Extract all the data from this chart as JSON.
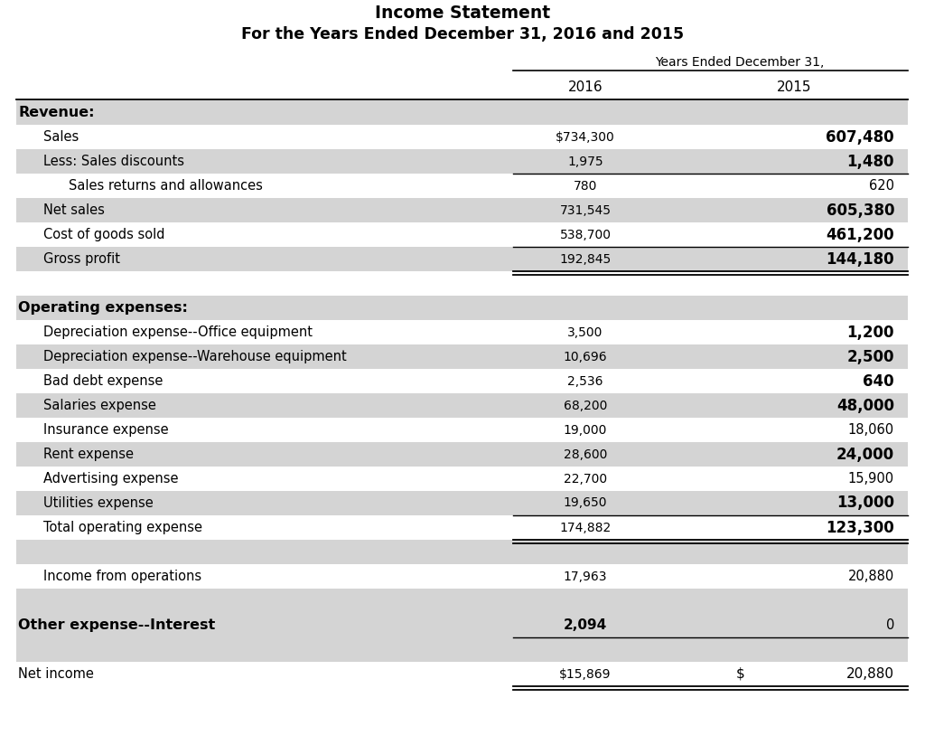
{
  "title1": "Income Statement",
  "title2": "For the Years Ended December 31, 2016 and 2015",
  "col_header": "Years Ended December 31,",
  "col1": "2016",
  "col2": "2015",
  "bg_color": "#ffffff",
  "shaded_color": "#d4d4d4",
  "rows": [
    {
      "label": "Revenue:",
      "val1": "",
      "val2": "",
      "style": "header_bold",
      "shade": true,
      "indent": 0
    },
    {
      "label": "Sales",
      "val1": "$734,300",
      "val2": "607,480",
      "style": "normal",
      "shade": false,
      "indent": 1,
      "val2_bold": true
    },
    {
      "label": "Less: Sales discounts",
      "val1": "1,975",
      "val2": "1,480",
      "style": "normal",
      "shade": true,
      "indent": 1,
      "val2_bold": true
    },
    {
      "label": "Sales returns and allowances",
      "val1": "780",
      "val2": "620",
      "style": "normal",
      "shade": false,
      "indent": 2,
      "line_above": true,
      "val2_bold": false
    },
    {
      "label": "Net sales",
      "val1": "731,545",
      "val2": "605,380",
      "style": "normal",
      "shade": true,
      "indent": 1,
      "val2_bold": true
    },
    {
      "label": "Cost of goods sold",
      "val1": "538,700",
      "val2": "461,200",
      "style": "normal",
      "shade": false,
      "indent": 1,
      "val2_bold": true
    },
    {
      "label": "Gross profit",
      "val1": "192,845",
      "val2": "144,180",
      "style": "normal",
      "shade": true,
      "indent": 1,
      "line_above": true,
      "double_line_below": true,
      "val2_bold": true
    },
    {
      "label": "",
      "val1": "",
      "val2": "",
      "style": "spacer",
      "shade": false,
      "indent": 0
    },
    {
      "label": "Operating expenses:",
      "val1": "",
      "val2": "",
      "style": "header_bold",
      "shade": true,
      "indent": 0
    },
    {
      "label": "Depreciation expense--Office equipment",
      "val1": "3,500",
      "val2": "1,200",
      "style": "normal",
      "shade": false,
      "indent": 1,
      "val2_bold": true
    },
    {
      "label": "Depreciation expense--Warehouse equipment",
      "val1": "10,696",
      "val2": "2,500",
      "style": "normal",
      "shade": true,
      "indent": 1,
      "val2_bold": true
    },
    {
      "label": "Bad debt expense",
      "val1": "2,536",
      "val2": "640",
      "style": "normal",
      "shade": false,
      "indent": 1,
      "val2_bold": true
    },
    {
      "label": "Salaries expense",
      "val1": "68,200",
      "val2": "48,000",
      "style": "normal",
      "shade": true,
      "indent": 1,
      "val2_bold": true
    },
    {
      "label": "Insurance expense",
      "val1": "19,000",
      "val2": "18,060",
      "style": "normal",
      "shade": false,
      "indent": 1,
      "val2_bold": false
    },
    {
      "label": "Rent expense",
      "val1": "28,600",
      "val2": "24,000",
      "style": "normal",
      "shade": true,
      "indent": 1,
      "val2_bold": true
    },
    {
      "label": "Advertising expense",
      "val1": "22,700",
      "val2": "15,900",
      "style": "normal",
      "shade": false,
      "indent": 1,
      "val2_bold": false
    },
    {
      "label": "Utilities expense",
      "val1": "19,650",
      "val2": "13,000",
      "style": "normal",
      "shade": true,
      "indent": 1,
      "val2_bold": true
    },
    {
      "label": "Total operating expense",
      "val1": "174,882",
      "val2": "123,300",
      "style": "normal",
      "shade": false,
      "indent": 1,
      "line_above": true,
      "double_line_below": true,
      "val2_bold": true
    },
    {
      "label": "",
      "val1": "",
      "val2": "",
      "style": "spacer",
      "shade": true,
      "indent": 0
    },
    {
      "label": "Income from operations",
      "val1": "17,963",
      "val2": "20,880",
      "style": "normal",
      "shade": false,
      "indent": 1,
      "val2_bold": false
    },
    {
      "label": "",
      "val1": "",
      "val2": "",
      "style": "spacer",
      "shade": true,
      "indent": 0
    },
    {
      "label": "Other expense--Interest",
      "val1": "2,094",
      "val2": "0",
      "style": "header_bold",
      "shade": true,
      "indent": 0,
      "line_below": true,
      "val2_bold": false
    },
    {
      "label": "",
      "val1": "",
      "val2": "",
      "style": "spacer",
      "shade": true,
      "indent": 0
    },
    {
      "label": "Net income",
      "val1": "$15,869",
      "val2_dollar": "$",
      "val2": "20,880",
      "style": "normal",
      "shade": false,
      "indent": 0,
      "double_line_below": true,
      "val2_bold": false
    }
  ]
}
